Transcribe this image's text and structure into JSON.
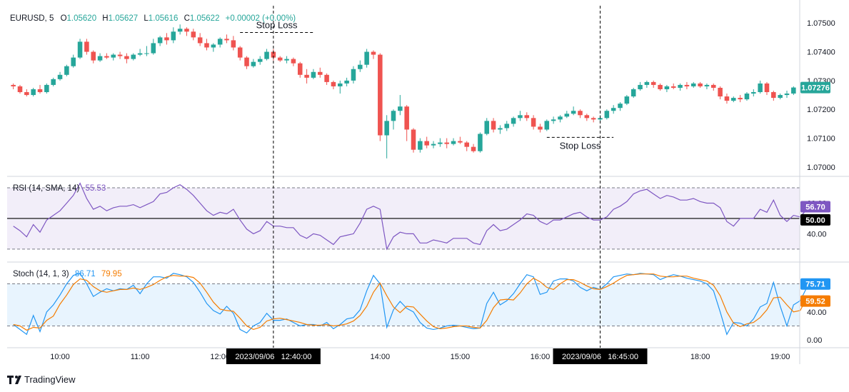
{
  "header": {
    "symbol": "EURUSD, 5",
    "o_label": "O",
    "o": "1.05620",
    "h_label": "H",
    "h": "1.05627",
    "l_label": "L",
    "l": "1.05616",
    "c_label": "C",
    "c": "1.05622",
    "change": "+0.00002 (+0.00%)"
  },
  "brand": "TradingView",
  "colors": {
    "up": "#26a69a",
    "down": "#ef5350",
    "rsi": "#7e57c2",
    "stoch_k": "#2196f3",
    "stoch_d": "#f57c00",
    "badge_price": "#26a69a",
    "badge_dark": "#000000"
  },
  "chart_data": [
    {
      "type": "candlestick",
      "title": "EURUSD, 5",
      "ylim": [
        1.0697,
        1.0756
      ],
      "y_ticks": [
        "1.07500",
        "1.07400",
        "1.07300",
        "1.07200",
        "1.07100",
        "1.07000"
      ],
      "last_price": "1.07276",
      "annotations": [
        {
          "text": "Stop Loss",
          "level": 1.07467,
          "from_time": "12:15",
          "to_time": "13:10"
        },
        {
          "text": "Stop Loss",
          "level": 1.07103,
          "from_time": "16:05",
          "to_time": "16:55"
        }
      ],
      "vertical_markers": [
        {
          "label": "2023/09/06   12:40:00",
          "time": "12:40"
        },
        {
          "label": "2023/09/06   16:45:00",
          "time": "16:45"
        }
      ],
      "x_ticks": [
        "10:00",
        "11:00",
        "12:00",
        "14:00",
        "15:00",
        "16:00",
        "18:00",
        "19:00"
      ],
      "candles": [
        [
          1.07285,
          1.0729,
          1.0727,
          1.0728
        ],
        [
          1.0728,
          1.07285,
          1.07255,
          1.0726
        ],
        [
          1.0726,
          1.0727,
          1.07245,
          1.0725
        ],
        [
          1.0725,
          1.07275,
          1.07245,
          1.0727
        ],
        [
          1.0727,
          1.07285,
          1.07255,
          1.0726
        ],
        [
          1.0726,
          1.0729,
          1.07255,
          1.07285
        ],
        [
          1.07285,
          1.0731,
          1.0728,
          1.07305
        ],
        [
          1.07305,
          1.0733,
          1.073,
          1.0732
        ],
        [
          1.0732,
          1.07355,
          1.07315,
          1.0735
        ],
        [
          1.0735,
          1.0739,
          1.07345,
          1.0738
        ],
        [
          1.0738,
          1.07445,
          1.07375,
          1.07435
        ],
        [
          1.07435,
          1.07445,
          1.0739,
          1.074
        ],
        [
          1.074,
          1.07405,
          1.0736,
          1.0737
        ],
        [
          1.0737,
          1.07395,
          1.07365,
          1.07385
        ],
        [
          1.07385,
          1.07395,
          1.07375,
          1.0738
        ],
        [
          1.0738,
          1.07395,
          1.0737,
          1.0739
        ],
        [
          1.0739,
          1.074,
          1.07375,
          1.07385
        ],
        [
          1.07385,
          1.07395,
          1.0736,
          1.07375
        ],
        [
          1.07375,
          1.07395,
          1.0737,
          1.0739
        ],
        [
          1.0739,
          1.0741,
          1.07385,
          1.07395
        ],
        [
          1.07395,
          1.0742,
          1.07385,
          1.07395
        ],
        [
          1.07395,
          1.07445,
          1.0739,
          1.0743
        ],
        [
          1.0743,
          1.07455,
          1.0742,
          1.0745
        ],
        [
          1.0745,
          1.07465,
          1.07425,
          1.0744
        ],
        [
          1.0744,
          1.07485,
          1.0743,
          1.0747
        ],
        [
          1.0747,
          1.07495,
          1.0746,
          1.0748
        ],
        [
          1.0748,
          1.07485,
          1.07455,
          1.0747
        ],
        [
          1.0747,
          1.0748,
          1.0744,
          1.0745
        ],
        [
          1.0745,
          1.07465,
          1.0742,
          1.0743
        ],
        [
          1.0743,
          1.07445,
          1.07405,
          1.07415
        ],
        [
          1.07415,
          1.0743,
          1.074,
          1.07425
        ],
        [
          1.07425,
          1.0745,
          1.07415,
          1.07445
        ],
        [
          1.07445,
          1.0746,
          1.0743,
          1.0744
        ],
        [
          1.0744,
          1.07455,
          1.07405,
          1.07415
        ],
        [
          1.07415,
          1.0742,
          1.0737,
          1.0738
        ],
        [
          1.0738,
          1.07385,
          1.0734,
          1.0735
        ],
        [
          1.0735,
          1.07375,
          1.07345,
          1.07365
        ],
        [
          1.07365,
          1.07385,
          1.07355,
          1.07375
        ],
        [
          1.07375,
          1.0741,
          1.0737,
          1.074
        ],
        [
          1.074,
          1.0741,
          1.0737,
          1.0738
        ],
        [
          1.0738,
          1.07385,
          1.07365,
          1.0737
        ],
        [
          1.0737,
          1.07385,
          1.0736,
          1.07375
        ],
        [
          1.07375,
          1.0738,
          1.0735,
          1.0736
        ],
        [
          1.0736,
          1.07365,
          1.0731,
          1.0732
        ],
        [
          1.0732,
          1.0734,
          1.0729,
          1.0731
        ],
        [
          1.0731,
          1.0734,
          1.07305,
          1.0733
        ],
        [
          1.0733,
          1.07345,
          1.0731,
          1.0732
        ],
        [
          1.0732,
          1.07325,
          1.07285,
          1.07295
        ],
        [
          1.07295,
          1.073,
          1.0727,
          1.0728
        ],
        [
          1.0728,
          1.073,
          1.07255,
          1.0729
        ],
        [
          1.0729,
          1.0731,
          1.0728,
          1.073
        ],
        [
          1.073,
          1.0735,
          1.0729,
          1.0734
        ],
        [
          1.0734,
          1.0737,
          1.0733,
          1.07355
        ],
        [
          1.07355,
          1.0741,
          1.07345,
          1.074
        ],
        [
          1.074,
          1.07405,
          1.07375,
          1.0739
        ],
        [
          1.0739,
          1.07395,
          1.0709,
          1.0711
        ],
        [
          1.0711,
          1.0718,
          1.0703,
          1.0716
        ],
        [
          1.0716,
          1.072,
          1.0713,
          1.07195
        ],
        [
          1.07195,
          1.0725,
          1.0718,
          1.0721
        ],
        [
          1.0721,
          1.07215,
          1.0709,
          1.0713
        ],
        [
          1.0713,
          1.07135,
          1.0705,
          1.0706
        ],
        [
          1.0706,
          1.071,
          1.0705,
          1.0709
        ],
        [
          1.0709,
          1.07105,
          1.07065,
          1.07075
        ],
        [
          1.07075,
          1.0709,
          1.07065,
          1.0708
        ],
        [
          1.0708,
          1.071,
          1.0707,
          1.07085
        ],
        [
          1.07085,
          1.071,
          1.07065,
          1.0708
        ],
        [
          1.0708,
          1.071,
          1.07075,
          1.0709
        ],
        [
          1.0709,
          1.07105,
          1.0708,
          1.07085
        ],
        [
          1.07085,
          1.0709,
          1.07055,
          1.0707
        ],
        [
          1.0707,
          1.0708,
          1.0705,
          1.07055
        ],
        [
          1.07055,
          1.0712,
          1.0705,
          1.07115
        ],
        [
          1.07115,
          1.0717,
          1.0711,
          1.0716
        ],
        [
          1.0716,
          1.0717,
          1.0712,
          1.0713
        ],
        [
          1.0713,
          1.07145,
          1.07115,
          1.07135
        ],
        [
          1.07135,
          1.0716,
          1.07125,
          1.0715
        ],
        [
          1.0715,
          1.07175,
          1.0714,
          1.0717
        ],
        [
          1.0717,
          1.07195,
          1.0716,
          1.0718
        ],
        [
          1.0718,
          1.0719,
          1.0716,
          1.0717
        ],
        [
          1.0717,
          1.0718,
          1.0713,
          1.0714
        ],
        [
          1.0714,
          1.0715,
          1.0712,
          1.0713
        ],
        [
          1.0713,
          1.07165,
          1.07125,
          1.0716
        ],
        [
          1.0716,
          1.07175,
          1.0715,
          1.07165
        ],
        [
          1.07165,
          1.0718,
          1.07155,
          1.07175
        ],
        [
          1.07175,
          1.07195,
          1.0717,
          1.07185
        ],
        [
          1.07185,
          1.0721,
          1.0718,
          1.07195
        ],
        [
          1.07195,
          1.072,
          1.0717,
          1.0718
        ],
        [
          1.0718,
          1.07185,
          1.0716,
          1.0717
        ],
        [
          1.0717,
          1.07175,
          1.07155,
          1.07165
        ],
        [
          1.07165,
          1.0718,
          1.07155,
          1.0717
        ],
        [
          1.0717,
          1.072,
          1.07165,
          1.07195
        ],
        [
          1.07195,
          1.07215,
          1.07185,
          1.07205
        ],
        [
          1.07205,
          1.07225,
          1.07195,
          1.0722
        ],
        [
          1.0722,
          1.0725,
          1.07215,
          1.07245
        ],
        [
          1.07245,
          1.07275,
          1.0724,
          1.0727
        ],
        [
          1.0727,
          1.07295,
          1.07265,
          1.07285
        ],
        [
          1.07285,
          1.073,
          1.07275,
          1.07295
        ],
        [
          1.07295,
          1.073,
          1.07275,
          1.07285
        ],
        [
          1.07285,
          1.0729,
          1.07265,
          1.0727
        ],
        [
          1.0727,
          1.07285,
          1.0726,
          1.0728
        ],
        [
          1.0728,
          1.0729,
          1.0727,
          1.07275
        ],
        [
          1.07275,
          1.0729,
          1.07265,
          1.07285
        ],
        [
          1.07285,
          1.07295,
          1.0727,
          1.0728
        ],
        [
          1.0728,
          1.07295,
          1.07275,
          1.0729
        ],
        [
          1.0729,
          1.07295,
          1.07275,
          1.0728
        ],
        [
          1.0728,
          1.0729,
          1.0727,
          1.07285
        ],
        [
          1.07285,
          1.0729,
          1.07265,
          1.07275
        ],
        [
          1.07275,
          1.0728,
          1.07235,
          1.07245
        ],
        [
          1.07245,
          1.07255,
          1.0722,
          1.0723
        ],
        [
          1.0723,
          1.07245,
          1.07225,
          1.0724
        ],
        [
          1.0724,
          1.0725,
          1.07225,
          1.07235
        ],
        [
          1.07235,
          1.0726,
          1.0723,
          1.07255
        ],
        [
          1.07255,
          1.0727,
          1.07245,
          1.0726
        ],
        [
          1.0726,
          1.073,
          1.07255,
          1.0729
        ],
        [
          1.0729,
          1.07295,
          1.0725,
          1.0726
        ],
        [
          1.0726,
          1.07265,
          1.0723,
          1.0724
        ],
        [
          1.0724,
          1.07255,
          1.07235,
          1.0725
        ],
        [
          1.0725,
          1.07265,
          1.0724,
          1.07255
        ],
        [
          1.07255,
          1.0728,
          1.0725,
          1.07276
        ]
      ]
    },
    {
      "type": "line",
      "title": "RSI (14, SMA, 14)",
      "value_label": "55.53",
      "ylim": [
        22,
        77
      ],
      "y_ticks": [
        "60.00",
        "40.00"
      ],
      "band": [
        70,
        30
      ],
      "midline": 50,
      "badges": [
        "56.70",
        "50.00"
      ],
      "series": [
        {
          "name": "RSI",
          "values": [
            45,
            42,
            38,
            46,
            41,
            49,
            52,
            55,
            60,
            65,
            73,
            63,
            56,
            58,
            55,
            57,
            58,
            58,
            59,
            57,
            59,
            61,
            66,
            67,
            70,
            72,
            69,
            65,
            60,
            55,
            52,
            54,
            53,
            56,
            49,
            43,
            40,
            42,
            48,
            45,
            45,
            44,
            44,
            39,
            37,
            40,
            39,
            36,
            33,
            38,
            39,
            40,
            47,
            56,
            58,
            56,
            30,
            38,
            41,
            40,
            40,
            34,
            34,
            36,
            35,
            34,
            37,
            37,
            37,
            34,
            33,
            42,
            46,
            42,
            43,
            46,
            49,
            53,
            52,
            48,
            46,
            49,
            49,
            51,
            53,
            54,
            51,
            49,
            49,
            51,
            56,
            58,
            61,
            66,
            68,
            69,
            66,
            63,
            65,
            64,
            62,
            62,
            63,
            61,
            60,
            60,
            57,
            48,
            45,
            50,
            50,
            50,
            56,
            54,
            62,
            52,
            48,
            52,
            51,
            56,
            57
          ]
        }
      ]
    },
    {
      "type": "line",
      "title": "Stoch (14, 1, 3)",
      "value_labels": [
        "86.71",
        "79.95"
      ],
      "ylim": [
        -10,
        110
      ],
      "y_ticks": [
        "40.00",
        "0.00"
      ],
      "band": [
        80,
        20
      ],
      "badges": [
        "75.71",
        "59.52"
      ],
      "series": [
        {
          "name": "%K",
          "values": [
            22,
            15,
            8,
            35,
            12,
            40,
            50,
            64,
            80,
            92,
            95,
            80,
            62,
            68,
            73,
            70,
            73,
            72,
            78,
            66,
            80,
            90,
            90,
            88,
            95,
            93,
            90,
            82,
            68,
            52,
            42,
            37,
            48,
            38,
            15,
            10,
            20,
            25,
            38,
            28,
            28,
            30,
            25,
            20,
            22,
            22,
            20,
            25,
            16,
            22,
            30,
            32,
            43,
            70,
            92,
            80,
            18,
            43,
            55,
            45,
            40,
            25,
            17,
            15,
            17,
            20,
            21,
            20,
            18,
            16,
            17,
            52,
            68,
            50,
            56,
            66,
            80,
            93,
            90,
            65,
            68,
            84,
            87,
            87,
            84,
            75,
            70,
            75,
            72,
            80,
            90,
            92,
            94,
            93,
            95,
            94,
            93,
            86,
            90,
            93,
            91,
            88,
            86,
            84,
            80,
            70,
            40,
            8,
            25,
            24,
            20,
            30,
            47,
            52,
            82,
            48,
            20,
            50,
            56,
            75,
            76
          ]
        },
        {
          "name": "%D",
          "values": [
            22,
            20,
            14,
            18,
            17,
            28,
            34,
            51,
            64,
            79,
            87,
            85,
            76,
            70,
            68,
            70,
            72,
            72,
            74,
            72,
            75,
            79,
            85,
            90,
            92,
            91,
            91,
            89,
            81,
            68,
            54,
            44,
            42,
            41,
            31,
            20,
            15,
            18,
            27,
            30,
            31,
            29,
            27,
            25,
            22,
            21,
            21,
            22,
            20,
            21,
            23,
            27,
            35,
            48,
            68,
            81,
            63,
            47,
            39,
            48,
            47,
            37,
            27,
            19,
            16,
            17,
            19,
            20,
            20,
            18,
            17,
            28,
            46,
            57,
            58,
            57,
            67,
            80,
            88,
            83,
            75,
            72,
            80,
            86,
            86,
            82,
            77,
            73,
            72,
            76,
            81,
            87,
            92,
            93,
            94,
            94,
            94,
            91,
            90,
            90,
            91,
            91,
            88,
            86,
            84,
            78,
            63,
            40,
            24,
            19,
            23,
            25,
            32,
            43,
            60,
            61,
            50,
            40,
            42,
            60,
            60
          ]
        }
      ]
    }
  ]
}
